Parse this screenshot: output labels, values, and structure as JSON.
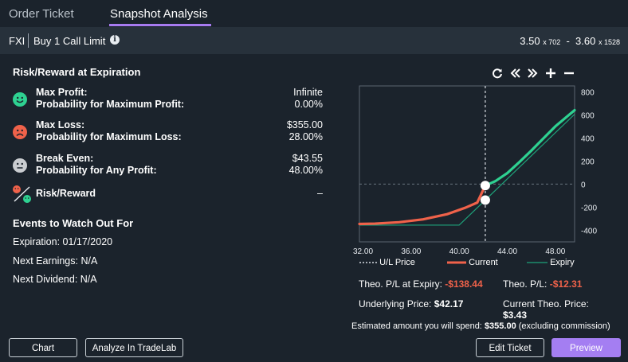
{
  "tabs": [
    {
      "label": "Order Ticket"
    },
    {
      "label": "Snapshot Analysis"
    }
  ],
  "order": {
    "symbol": "FXI",
    "description": "Buy 1 Call Limit",
    "bid": "3.50",
    "bid_size": "x 702",
    "separator": "-",
    "ask": "3.60",
    "ask_size": "x 1528"
  },
  "risk_reward": {
    "heading": "Risk/Reward at Expiration",
    "max_profit_label": "Max Profit:",
    "max_profit_value": "Infinite",
    "prob_max_profit_label": "Probability for Maximum Profit:",
    "prob_max_profit_value": "0.00%",
    "max_loss_label": "Max Loss:",
    "max_loss_value": "$355.00",
    "prob_max_loss_label": "Probability for Maximum Loss:",
    "prob_max_loss_value": "28.00%",
    "break_even_label": "Break Even:",
    "break_even_value": "$43.55",
    "prob_any_profit_label": "Probability for Any Profit:",
    "prob_any_profit_value": "48.00%",
    "ratio_label": "Risk/Reward",
    "ratio_value": "–"
  },
  "events": {
    "heading": "Events to Watch Out For",
    "expiration": "Expiration: 01/17/2020",
    "earnings": "Next Earnings: N/A",
    "dividend": "Next Dividend: N/A"
  },
  "chart_data": {
    "type": "line",
    "x_ticks": [
      "32.00",
      "36.00",
      "40.00",
      "44.00",
      "48.00"
    ],
    "y_ticks": [
      "800",
      "600",
      "400",
      "200",
      "0",
      "-200",
      "-400"
    ],
    "xlim": [
      31.7,
      49.6
    ],
    "ylim": [
      -500,
      850
    ],
    "underlying_price": 42.17,
    "series": [
      {
        "name": "Current",
        "color": "#f0624a",
        "profit_color": "#2ed191",
        "x": [
          31.7,
          33,
          35,
          37,
          39,
          40.5,
          41.5,
          42.17,
          43,
          44,
          45,
          46,
          47,
          48,
          49.6
        ],
        "y": [
          -345,
          -342,
          -330,
          -305,
          -260,
          -205,
          -160,
          -12.31,
          25,
          95,
          190,
          290,
          395,
          500,
          640
        ]
      },
      {
        "name": "Expiry",
        "color": "#1ea27a",
        "x": [
          31.7,
          40,
          43.55,
          49.6
        ],
        "y": [
          -355,
          -355,
          0,
          605
        ]
      }
    ],
    "legend": [
      {
        "label": "U/L Price",
        "style": "dotted",
        "color": "#d7dde3"
      },
      {
        "label": "Current",
        "style": "solid",
        "color": "#f0624a"
      },
      {
        "label": "Expiry",
        "style": "solid",
        "color": "#1ea27a"
      }
    ]
  },
  "metrics": {
    "theo_pl_expiry_label": "Theo. P/L at Expiry:",
    "theo_pl_expiry_value": "-$138.44",
    "theo_pl_label": "Theo. P/L:",
    "theo_pl_value": "-$12.31",
    "underlying_label": "Underlying Price:",
    "underlying_value": "$42.17",
    "current_theo_label": "Current Theo. Price:",
    "current_theo_value": "$3.43",
    "estimate_prefix": "Estimated amount you will spend:",
    "estimate_value": "$355.00",
    "estimate_suffix": "(excluding commission)"
  },
  "buttons": {
    "chart": "Chart",
    "tradelab": "Analyze In TradeLab",
    "edit": "Edit Ticket",
    "preview": "Preview"
  },
  "colors": {
    "accent": "#a47ef2",
    "loss": "#f0624a",
    "profit": "#2ed191",
    "background": "#1b232c"
  }
}
